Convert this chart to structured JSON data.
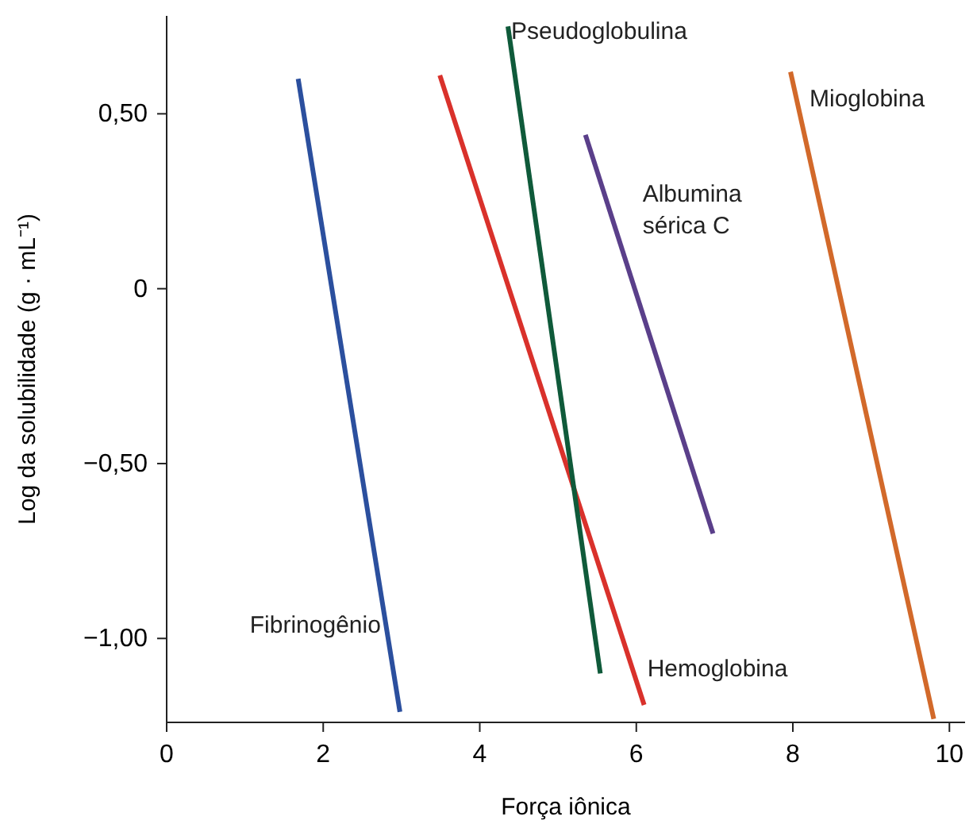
{
  "chart_data": {
    "type": "line",
    "xlabel": "Força iônica",
    "ylabel": "Log da solubilidade (g · mL⁻¹)",
    "xlim": [
      0,
      10.2
    ],
    "ylim": [
      -1.24,
      0.78
    ],
    "xticks": [
      0,
      2,
      4,
      6,
      8,
      10
    ],
    "yticks": [
      {
        "value": 0.5,
        "label": "0,50"
      },
      0,
      {
        "value": -0.5,
        "label": "−0,50"
      },
      {
        "value": -1,
        "label": "−1,00"
      }
    ],
    "grid": false,
    "marker": "none",
    "line_style": "solid",
    "series": [
      {
        "name": "Fibrinogênio",
        "color": "#2b4f9e",
        "x": [
          1.68,
          2.98
        ],
        "values": [
          0.6,
          -1.21
        ]
      },
      {
        "name": "Hemoglobina",
        "color": "#d9312b",
        "x": [
          3.49,
          6.1
        ],
        "values": [
          0.61,
          -1.19
        ]
      },
      {
        "name": "Pseudoglobulina",
        "color": "#0f5a3a",
        "x": [
          4.36,
          5.54
        ],
        "values": [
          0.75,
          -1.1
        ]
      },
      {
        "name": "Albumina sérica C",
        "color": "#5a3f8a",
        "x": [
          5.35,
          6.98
        ],
        "values": [
          0.44,
          -0.7
        ]
      },
      {
        "name": "Mioglobina",
        "color": "#d2692a",
        "x": [
          7.97,
          9.8
        ],
        "values": [
          0.62,
          -1.23
        ]
      }
    ]
  }
}
